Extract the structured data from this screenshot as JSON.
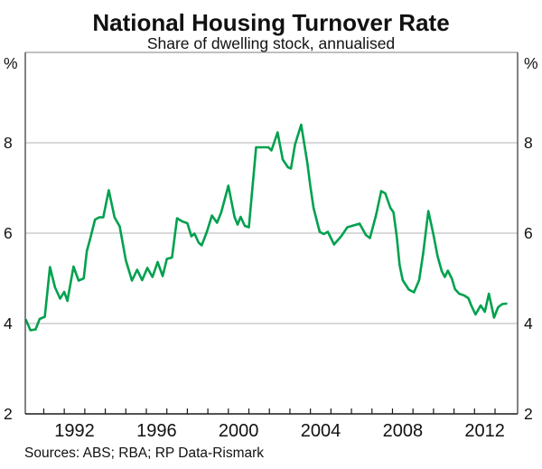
{
  "chart_data": {
    "type": "line",
    "title": "National Housing Turnover Rate",
    "subtitle": "Share of dwelling stock, annualised",
    "source_note": "Sources: ABS; RBA; RP Data-Rismark",
    "unit_left": "%",
    "unit_right": "%",
    "ylim": [
      2,
      10
    ],
    "xlim": [
      1989.6,
      2013.6
    ],
    "y_gridlines": [
      4,
      6,
      8
    ],
    "y_tick_labels": [
      2,
      4,
      6,
      8
    ],
    "x_labeled_years": [
      1992,
      1996,
      2000,
      2004,
      2008,
      2012
    ],
    "x_minor_tick_offset": 0.5,
    "grid": "horizontal-only",
    "legend": "none",
    "frame": "full-box",
    "colors": {
      "line": "#00a14e",
      "gridline": "#b3b3b3",
      "frame_top": "#999999",
      "frame_sides": "#4d4d4d",
      "axis_bottom": "#1a1a1a",
      "text": "#111111"
    },
    "series": [
      {
        "name": "National housing turnover rate (per cent of dwelling stock, annualised)",
        "color": "#00a14e",
        "x": [
          1989.63,
          1989.85,
          1990.1,
          1990.3,
          1990.55,
          1990.8,
          1991.05,
          1991.3,
          1991.5,
          1991.65,
          1991.95,
          1992.2,
          1992.45,
          1992.6,
          1992.75,
          1993.0,
          1993.2,
          1993.4,
          1993.67,
          1993.95,
          1994.2,
          1994.5,
          1994.8,
          1995.05,
          1995.3,
          1995.55,
          1995.8,
          1996.05,
          1996.3,
          1996.5,
          1996.75,
          1997.0,
          1997.25,
          1997.5,
          1997.7,
          1997.85,
          1998.05,
          1998.2,
          1998.45,
          1998.7,
          1998.95,
          1999.15,
          1999.5,
          1999.8,
          1999.95,
          2000.1,
          2000.3,
          2000.5,
          2000.85,
          2001.2,
          2001.45,
          2001.6,
          2001.9,
          2002.15,
          2002.4,
          2002.55,
          2002.75,
          2003.05,
          2003.35,
          2003.5,
          2003.65,
          2003.8,
          2003.95,
          2004.15,
          2004.35,
          2004.65,
          2005.0,
          2005.3,
          2005.6,
          2005.9,
          2006.2,
          2006.4,
          2006.7,
          2006.95,
          2007.15,
          2007.4,
          2007.55,
          2007.7,
          2007.85,
          2008.0,
          2008.3,
          2008.55,
          2008.8,
          2009.0,
          2009.25,
          2009.5,
          2009.7,
          2009.9,
          2010.05,
          2010.2,
          2010.4,
          2010.55,
          2010.75,
          2011.0,
          2011.2,
          2011.35,
          2011.55,
          2011.8,
          2012.0,
          2012.2,
          2012.45,
          2012.65,
          2012.85,
          2013.05
        ],
        "y": [
          4.08,
          3.85,
          3.87,
          4.1,
          4.15,
          5.25,
          4.8,
          4.55,
          4.7,
          4.5,
          5.26,
          4.95,
          5.0,
          5.6,
          5.85,
          6.3,
          6.35,
          6.35,
          6.95,
          6.35,
          6.15,
          5.4,
          4.95,
          5.19,
          4.96,
          5.23,
          5.03,
          5.36,
          5.05,
          5.43,
          5.46,
          6.33,
          6.26,
          6.22,
          5.93,
          5.99,
          5.79,
          5.73,
          6.03,
          6.39,
          6.23,
          6.46,
          7.05,
          6.36,
          6.19,
          6.36,
          6.16,
          6.13,
          7.9,
          7.9,
          7.9,
          7.83,
          8.23,
          7.63,
          7.46,
          7.43,
          7.96,
          8.4,
          7.56,
          7.03,
          6.56,
          6.29,
          6.03,
          5.98,
          6.03,
          5.75,
          5.93,
          6.13,
          6.17,
          6.21,
          5.96,
          5.89,
          6.4,
          6.93,
          6.88,
          6.56,
          6.46,
          5.96,
          5.29,
          4.96,
          4.75,
          4.69,
          4.96,
          5.56,
          6.49,
          5.96,
          5.49,
          5.16,
          5.03,
          5.17,
          4.99,
          4.76,
          4.66,
          4.62,
          4.56,
          4.39,
          4.2,
          4.4,
          4.26,
          4.66,
          4.13,
          4.36,
          4.43,
          4.44
        ]
      }
    ]
  }
}
